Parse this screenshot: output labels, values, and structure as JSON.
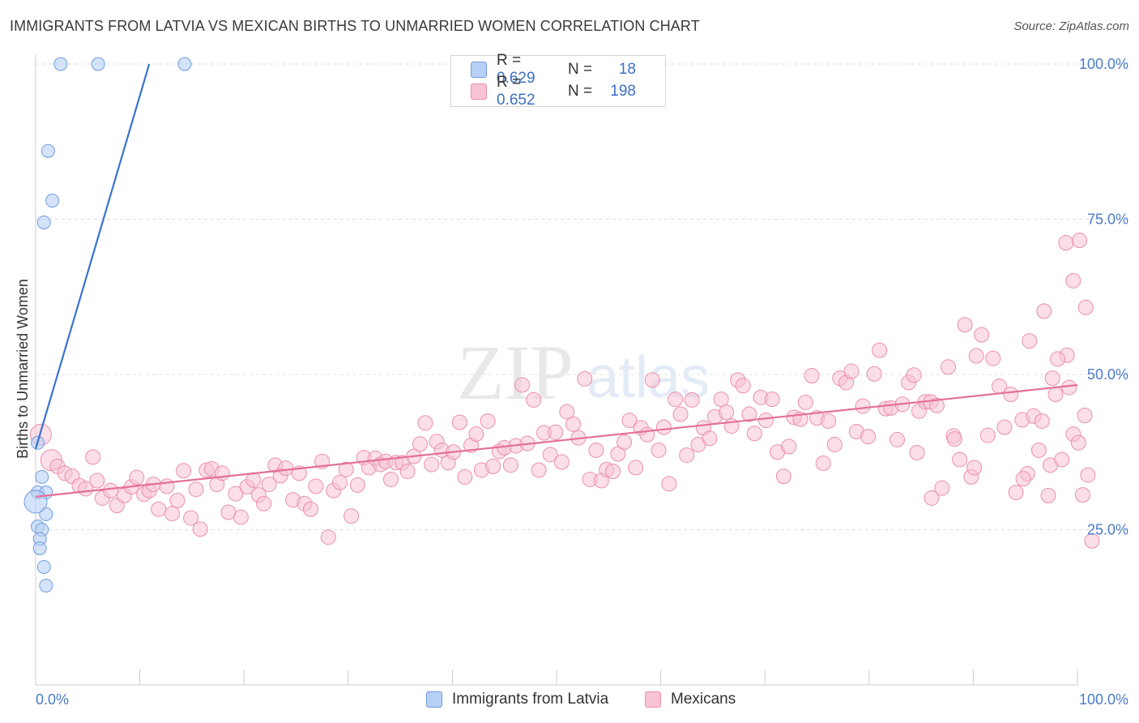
{
  "title": "IMMIGRANTS FROM LATVIA VS MEXICAN BIRTHS TO UNMARRIED WOMEN CORRELATION CHART",
  "source": "Source: ZipAtlas.com",
  "watermark": {
    "zip": "ZIP",
    "atlas": "atlas"
  },
  "colors": {
    "latvia_fill": "#b7d0f5",
    "latvia_stroke": "#6f9be0",
    "latvia_line": "#3a72cf",
    "mexico_fill": "#f8c3d4",
    "mexico_stroke": "#ea8fae",
    "mexico_line": "#e46f98",
    "tick_text": "#4a7cc9",
    "grid": "#dddddd"
  },
  "legend": {
    "r_label": "R =",
    "n_label": "N =",
    "rows": [
      {
        "r": "0.629",
        "n": "18"
      },
      {
        "r": "0.652",
        "n": "198"
      }
    ]
  },
  "bottom_legend": [
    "Immigrants from Latvia",
    "Mexicans"
  ],
  "chart_data": {
    "type": "scatter",
    "title": "IMMIGRANTS FROM LATVIA VS MEXICAN BIRTHS TO UNMARRIED WOMEN CORRELATION CHART",
    "xlabel": "",
    "ylabel": "Births to Unmarried Women",
    "xlim": [
      0,
      100
    ],
    "ylim": [
      0,
      105
    ],
    "x_tick_labels": [
      "0.0%",
      "100.0%"
    ],
    "y_ticks": [
      25,
      50,
      75,
      100
    ],
    "y_tick_labels": [
      "25.0%",
      "50.0%",
      "75.0%",
      "100.0%"
    ],
    "grid": true,
    "legend_position": "top-center",
    "series": [
      {
        "name": "Immigrants from Latvia",
        "r": 0.629,
        "n": 18,
        "trend": {
          "x": [
            0.0,
            10.9
          ],
          "y": [
            38.0,
            100.0
          ]
        },
        "points": [
          [
            2.4,
            100
          ],
          [
            6.0,
            100
          ],
          [
            14.3,
            100
          ],
          [
            1.2,
            86.0
          ],
          [
            1.6,
            78.0
          ],
          [
            0.8,
            74.5
          ],
          [
            0.2,
            39.0
          ],
          [
            0.6,
            33.5
          ],
          [
            0.2,
            31.0
          ],
          [
            1.0,
            31.0
          ],
          [
            1.0,
            27.5
          ],
          [
            0.2,
            25.5
          ],
          [
            0.6,
            25.0
          ],
          [
            0.4,
            23.5
          ],
          [
            0.4,
            22.0
          ],
          [
            0.8,
            19.0
          ],
          [
            1.0,
            16.0
          ],
          [
            0.0,
            29.5
          ]
        ]
      },
      {
        "name": "Mexicans",
        "r": 0.652,
        "n": 198,
        "trend": {
          "x": [
            0.0,
            100.0
          ],
          "y": [
            30.3,
            48.3
          ]
        },
        "points": [
          [
            0.5,
            40.3
          ],
          [
            1.5,
            36.2
          ],
          [
            2.1,
            35.2
          ],
          [
            2.8,
            34.1
          ],
          [
            3.5,
            33.6
          ],
          [
            4.2,
            32.1
          ],
          [
            4.8,
            31.6
          ],
          [
            5.5,
            36.7
          ],
          [
            5.9,
            32.9
          ],
          [
            6.4,
            30.1
          ],
          [
            7.2,
            31.3
          ],
          [
            7.8,
            28.9
          ],
          [
            8.5,
            30.5
          ],
          [
            9.2,
            31.9
          ],
          [
            9.7,
            33.4
          ],
          [
            10.4,
            30.7
          ],
          [
            10.9,
            31.3
          ],
          [
            11.3,
            32.3
          ],
          [
            11.8,
            28.3
          ],
          [
            12.6,
            32.0
          ],
          [
            13.1,
            27.6
          ],
          [
            13.6,
            29.7
          ],
          [
            14.2,
            34.5
          ],
          [
            14.9,
            26.9
          ],
          [
            15.4,
            31.5
          ],
          [
            15.8,
            25.1
          ],
          [
            16.4,
            34.6
          ],
          [
            16.9,
            34.8
          ],
          [
            17.4,
            32.3
          ],
          [
            17.9,
            34.1
          ],
          [
            18.5,
            27.8
          ],
          [
            19.2,
            30.8
          ],
          [
            19.7,
            27.0
          ],
          [
            20.3,
            31.9
          ],
          [
            20.9,
            33.0
          ],
          [
            21.4,
            30.6
          ],
          [
            21.9,
            29.2
          ],
          [
            22.4,
            32.3
          ],
          [
            23.0,
            35.4
          ],
          [
            23.5,
            33.7
          ],
          [
            24.0,
            34.9
          ],
          [
            24.7,
            29.8
          ],
          [
            25.3,
            34.1
          ],
          [
            25.8,
            29.2
          ],
          [
            26.4,
            28.3
          ],
          [
            26.9,
            32.0
          ],
          [
            27.5,
            36.0
          ],
          [
            28.1,
            23.8
          ],
          [
            28.6,
            31.3
          ],
          [
            29.2,
            32.6
          ],
          [
            29.8,
            34.7
          ],
          [
            30.3,
            27.2
          ],
          [
            30.9,
            32.2
          ],
          [
            31.5,
            36.6
          ],
          [
            32.0,
            35.0
          ],
          [
            32.6,
            36.5
          ],
          [
            33.1,
            35.5
          ],
          [
            33.6,
            36.0
          ],
          [
            34.1,
            33.1
          ],
          [
            34.6,
            35.8
          ],
          [
            35.2,
            35.8
          ],
          [
            35.7,
            34.4
          ],
          [
            36.3,
            36.8
          ],
          [
            36.9,
            38.8
          ],
          [
            37.4,
            42.2
          ],
          [
            38.0,
            35.5
          ],
          [
            38.5,
            39.2
          ],
          [
            39.0,
            37.8
          ],
          [
            39.6,
            35.8
          ],
          [
            40.1,
            37.5
          ],
          [
            40.7,
            42.3
          ],
          [
            41.2,
            33.5
          ],
          [
            41.8,
            38.6
          ],
          [
            42.3,
            40.4
          ],
          [
            42.8,
            34.6
          ],
          [
            43.4,
            42.5
          ],
          [
            43.9,
            35.2
          ],
          [
            44.5,
            37.6
          ],
          [
            45.0,
            38.2
          ],
          [
            45.6,
            35.4
          ],
          [
            46.1,
            38.5
          ],
          [
            46.7,
            48.3
          ],
          [
            47.2,
            38.9
          ],
          [
            47.8,
            45.9
          ],
          [
            48.3,
            34.6
          ],
          [
            48.8,
            40.6
          ],
          [
            49.4,
            37.1
          ],
          [
            49.9,
            40.7
          ],
          [
            50.5,
            35.9
          ],
          [
            51.0,
            44.0
          ],
          [
            51.6,
            42.0
          ],
          [
            52.1,
            39.8
          ],
          [
            52.7,
            49.3
          ],
          [
            53.2,
            33.1
          ],
          [
            53.8,
            37.8
          ],
          [
            54.3,
            32.9
          ],
          [
            54.8,
            34.7
          ],
          [
            55.4,
            34.4
          ],
          [
            55.9,
            37.2
          ],
          [
            56.5,
            39.1
          ],
          [
            57.0,
            42.6
          ],
          [
            57.6,
            35.0
          ],
          [
            58.1,
            41.4
          ],
          [
            58.7,
            40.3
          ],
          [
            59.2,
            49.1
          ],
          [
            59.8,
            37.8
          ],
          [
            60.3,
            41.5
          ],
          [
            60.8,
            32.4
          ],
          [
            61.4,
            46.0
          ],
          [
            61.9,
            43.6
          ],
          [
            62.5,
            37.0
          ],
          [
            63.0,
            45.9
          ],
          [
            63.6,
            38.7
          ],
          [
            64.1,
            41.4
          ],
          [
            64.7,
            39.7
          ],
          [
            65.2,
            43.2
          ],
          [
            65.8,
            46.0
          ],
          [
            66.3,
            43.9
          ],
          [
            66.8,
            41.7
          ],
          [
            67.4,
            49.1
          ],
          [
            67.9,
            48.2
          ],
          [
            68.5,
            43.6
          ],
          [
            69.0,
            40.5
          ],
          [
            69.6,
            46.3
          ],
          [
            70.1,
            42.6
          ],
          [
            70.7,
            46.0
          ],
          [
            71.2,
            37.5
          ],
          [
            71.8,
            33.6
          ],
          [
            72.3,
            38.4
          ],
          [
            72.8,
            43.1
          ],
          [
            73.4,
            42.8
          ],
          [
            73.9,
            45.5
          ],
          [
            74.5,
            49.8
          ],
          [
            75.0,
            43.0
          ],
          [
            75.6,
            35.7
          ],
          [
            76.1,
            42.5
          ],
          [
            76.7,
            38.7
          ],
          [
            77.2,
            49.4
          ],
          [
            77.8,
            48.7
          ],
          [
            78.3,
            50.5
          ],
          [
            78.8,
            40.8
          ],
          [
            79.4,
            44.9
          ],
          [
            79.9,
            40.0
          ],
          [
            80.5,
            50.1
          ],
          [
            81.0,
            53.9
          ],
          [
            81.6,
            44.5
          ],
          [
            82.1,
            44.6
          ],
          [
            82.7,
            39.5
          ],
          [
            83.2,
            45.2
          ],
          [
            83.8,
            48.7
          ],
          [
            84.3,
            49.9
          ],
          [
            84.8,
            44.1
          ],
          [
            85.4,
            45.6
          ],
          [
            85.9,
            45.6
          ],
          [
            86.5,
            45.0
          ],
          [
            87.0,
            31.7
          ],
          [
            87.6,
            51.2
          ],
          [
            88.1,
            40.1
          ],
          [
            88.7,
            36.3
          ],
          [
            89.2,
            58.0
          ],
          [
            89.8,
            33.5
          ],
          [
            90.3,
            53.0
          ],
          [
            90.8,
            56.4
          ],
          [
            91.4,
            40.2
          ],
          [
            91.9,
            52.6
          ],
          [
            92.5,
            48.1
          ],
          [
            93.0,
            41.5
          ],
          [
            93.6,
            46.8
          ],
          [
            94.1,
            31.0
          ],
          [
            94.7,
            42.7
          ],
          [
            95.2,
            34.0
          ],
          [
            95.8,
            43.3
          ],
          [
            96.3,
            37.8
          ],
          [
            96.8,
            60.2
          ],
          [
            97.4,
            35.4
          ],
          [
            97.9,
            46.8
          ],
          [
            98.5,
            36.3
          ],
          [
            99.0,
            53.1
          ],
          [
            99.6,
            40.4
          ],
          [
            100.1,
            39.0
          ],
          [
            100.7,
            43.4
          ],
          [
            97.6,
            49.4
          ],
          [
            98.1,
            52.5
          ],
          [
            96.6,
            42.5
          ],
          [
            99.2,
            47.9
          ],
          [
            98.9,
            71.2
          ],
          [
            99.6,
            65.1
          ],
          [
            100.2,
            71.6
          ],
          [
            100.8,
            60.8
          ],
          [
            100.5,
            30.6
          ],
          [
            101.4,
            23.2
          ],
          [
            101.0,
            33.8
          ],
          [
            95.4,
            55.4
          ],
          [
            90.1,
            35.0
          ],
          [
            88.2,
            39.6
          ],
          [
            86.0,
            30.1
          ],
          [
            84.6,
            37.4
          ],
          [
            94.8,
            33.2
          ],
          [
            97.2,
            30.5
          ]
        ]
      }
    ]
  }
}
